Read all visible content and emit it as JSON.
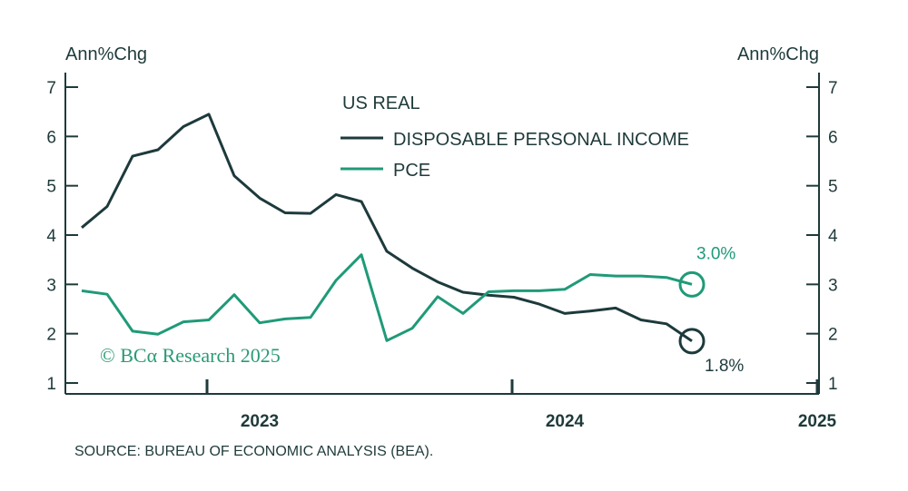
{
  "chart_data": {
    "type": "line",
    "left_axis_label": "Ann%Chg",
    "right_axis_label": "Ann%Chg",
    "ylim": [
      1,
      7
    ],
    "yticks": [
      "1",
      "2",
      "3",
      "4",
      "5",
      "6",
      "7"
    ],
    "xlim": [
      "2022-08",
      "2025-01"
    ],
    "xticks": [
      {
        "label": "2023",
        "date": "2023-01"
      },
      {
        "label": "2024",
        "date": "2024-01"
      },
      {
        "label": "2025",
        "date": "2025-01"
      }
    ],
    "legend_title": "US REAL",
    "legend_position": "top-center",
    "grid": false,
    "series": [
      {
        "name": "DISPOSABLE PERSONAL INCOME",
        "color": "#1d3a3c",
        "end_label": "1.8%",
        "x": [
          "2022-08",
          "2022-09",
          "2022-10",
          "2022-11",
          "2022-12",
          "2023-01",
          "2023-02",
          "2023-03",
          "2023-04",
          "2023-05",
          "2023-06",
          "2023-07",
          "2023-08",
          "2023-09",
          "2023-10",
          "2023-11",
          "2023-12",
          "2024-01",
          "2024-02",
          "2024-03",
          "2024-04",
          "2024-05",
          "2024-06",
          "2024-07",
          "2024-08",
          "2024-09",
          "2024-10"
        ],
        "y": [
          4.15,
          4.58,
          5.6,
          5.73,
          6.2,
          6.45,
          5.2,
          4.75,
          4.45,
          4.44,
          4.82,
          4.68,
          3.67,
          3.33,
          3.05,
          2.84,
          2.78,
          2.74,
          2.6,
          2.41,
          2.46,
          2.52,
          2.28,
          2.2,
          1.85,
          null,
          null
        ]
      },
      {
        "name": "PCE",
        "color": "#1f9a78",
        "end_label": "3.0%",
        "x": [
          "2022-08",
          "2022-09",
          "2022-10",
          "2022-11",
          "2022-12",
          "2023-01",
          "2023-02",
          "2023-03",
          "2023-04",
          "2023-05",
          "2023-06",
          "2023-07",
          "2023-08",
          "2023-09",
          "2023-10",
          "2023-11",
          "2023-12",
          "2024-01",
          "2024-02",
          "2024-03",
          "2024-04",
          "2024-05",
          "2024-06",
          "2024-07",
          "2024-08"
        ],
        "y": [
          2.87,
          2.8,
          2.05,
          1.99,
          2.24,
          2.28,
          2.79,
          2.22,
          2.3,
          2.33,
          3.08,
          3.6,
          1.86,
          2.11,
          2.75,
          2.41,
          2.85,
          2.87,
          2.87,
          2.9,
          3.2,
          3.17,
          3.17,
          3.14,
          3.0
        ]
      }
    ]
  },
  "watermark": "© BCα Research 2025",
  "source": "SOURCE: BUREAU OF ECONOMIC ANALYSIS (BEA)."
}
